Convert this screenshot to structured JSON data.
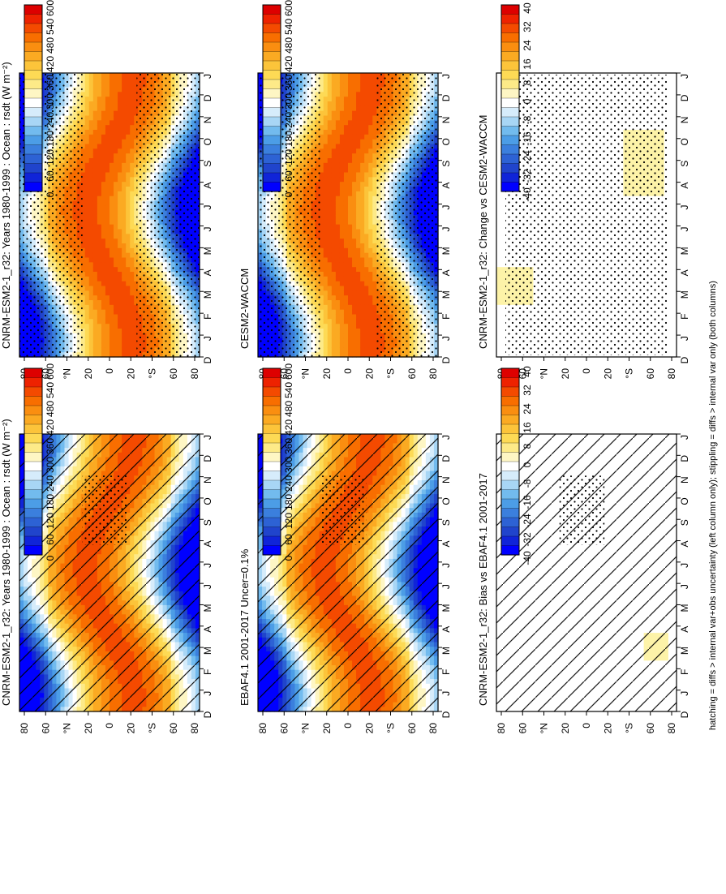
{
  "caption": "hatching = diffs > internal var+obs uncertainty (left column only); stippling = diffs > internal var only (both columns)",
  "months": [
    "D",
    "J",
    "F",
    "M",
    "A",
    "M",
    "J",
    "J",
    "A",
    "S",
    "O",
    "N",
    "D",
    "J"
  ],
  "lat_ticks": [
    "80",
    "60",
    "°N",
    "20",
    "0",
    "20",
    "°S",
    "60",
    "80"
  ],
  "palettes": {
    "flux": [
      "#dd0000",
      "#ee2200",
      "#f44a00",
      "#f86e00",
      "#fa8e10",
      "#fbaa22",
      "#fcc43a",
      "#fdda55",
      "#fdea88",
      "#fef6c4",
      "#ffffff",
      "#d6ecfb",
      "#a8d6f5",
      "#72bbee",
      "#4c9de6",
      "#3b7fdd",
      "#2d62d4",
      "#2044cc",
      "#1024d8",
      "#0000ff"
    ],
    "diff": [
      "#dd0000",
      "#ee2200",
      "#f44a00",
      "#f86e00",
      "#fa8e10",
      "#fbaa22",
      "#fcc43a",
      "#fdda55",
      "#fdea88",
      "#fef6c4",
      "#ffffff",
      "#d6ecfb",
      "#a8d6f5",
      "#72bbee",
      "#4c9de6",
      "#3b7fdd",
      "#2d62d4",
      "#2044cc",
      "#1024d8",
      "#0000ff"
    ]
  },
  "colorbars": {
    "flux": [
      "600",
      "540",
      "480",
      "420",
      "360",
      "300",
      "240",
      "180",
      "120",
      "60",
      "0"
    ],
    "diff": [
      "40",
      "32",
      "24",
      "16",
      "8",
      "0",
      "-8",
      "-16",
      "-24",
      "-32",
      "-40"
    ]
  },
  "chart_data": [
    {
      "id": "cnrm",
      "type": "heatmap",
      "title": "CNRM-ESM2-1_r32: Years 1980-1999 : Ocean : rsdt (W m⁻²)",
      "x_axis": "months D..J",
      "y_axis": "latitude 90N..90S",
      "range": [
        0,
        600
      ],
      "field": "TOA incoming solar radiation over ocean (annual cycle)",
      "overlays": [
        "stippling polar/summer regions"
      ]
    },
    {
      "id": "ebaf",
      "type": "heatmap",
      "title": "EBAF4.1 2001-2017 Uncer=0.1%",
      "range": [
        0,
        600
      ],
      "field": "TOA incoming solar radiation over ocean (annual cycle)",
      "overlays": [
        "hatching",
        "stippling"
      ]
    },
    {
      "id": "bias",
      "type": "heatmap",
      "title": "CNRM-ESM2-1_r32: Bias vs EBAF4.1 2001-2017",
      "range": [
        -40,
        40
      ],
      "field": "near-zero bias, small positive patch ~8 W m-2 near 70S Feb-Mar",
      "overlays": [
        "hatching",
        "stippling"
      ]
    },
    {
      "id": "cesm",
      "type": "heatmap",
      "title": "CESM2-WACCM",
      "range": [
        0,
        600
      ],
      "field": "TOA incoming solar radiation over ocean (annual cycle)",
      "overlays": [
        "stippling"
      ]
    },
    {
      "id": "change",
      "type": "heatmap",
      "title": "CNRM-ESM2-1_r32: Change vs CESM2-WACCM",
      "range": [
        -40,
        40
      ],
      "field": "near-zero change, positive ~8 W m-2 patches: 60-80N Mar-Apr, 40-75S Jul-Oct",
      "overlays": [
        "stippling"
      ]
    }
  ]
}
